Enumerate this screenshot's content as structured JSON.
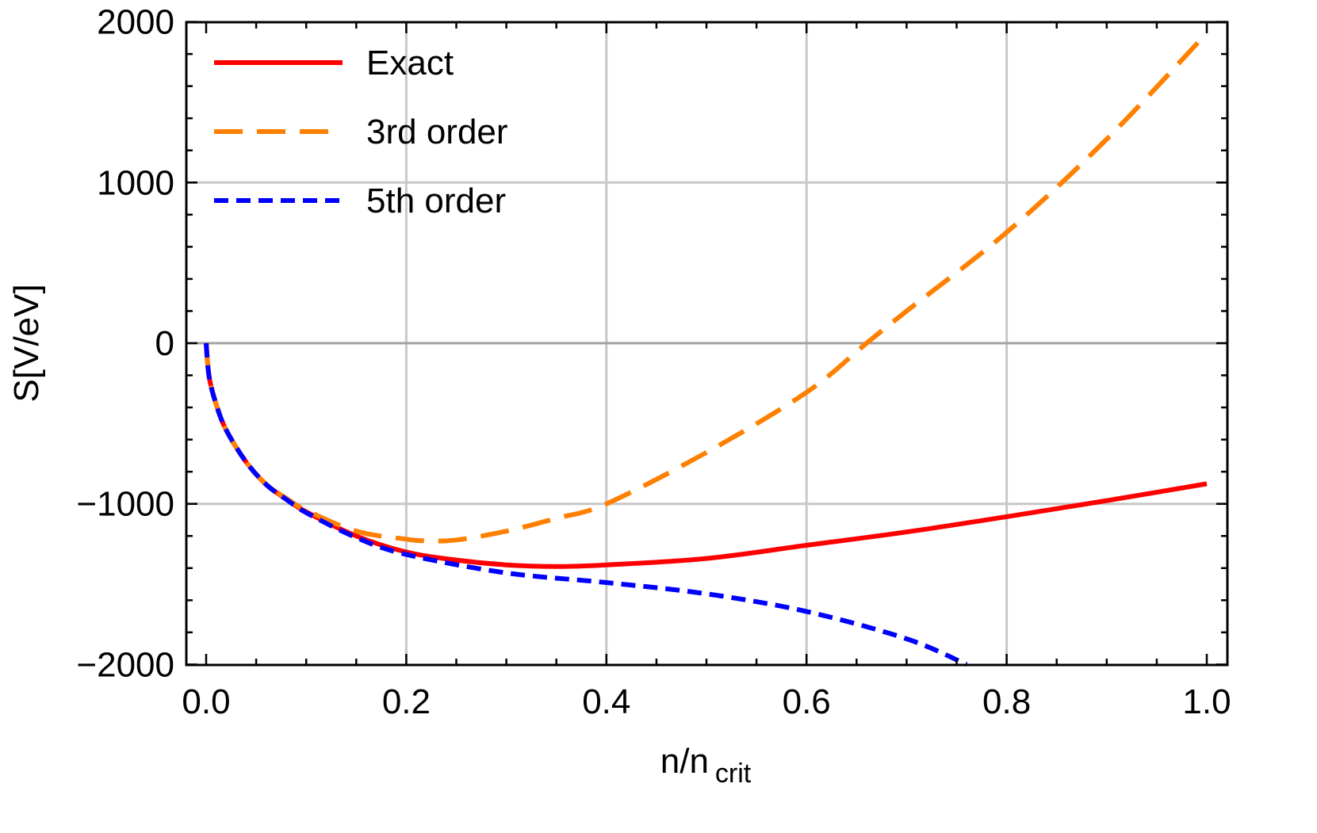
{
  "chart_data": {
    "type": "line",
    "title": "",
    "xlabel_main": "n/n",
    "xlabel_sub": "crit",
    "ylabel": "S[V/eV]",
    "xlim": [
      0,
      1
    ],
    "ylim": [
      -2000,
      2000
    ],
    "x_ticks": [
      0.0,
      0.2,
      0.4,
      0.6,
      0.8,
      1.0
    ],
    "x_tick_labels": [
      "0.0",
      "0.2",
      "0.4",
      "0.6",
      "0.8",
      "1.0"
    ],
    "y_ticks": [
      -2000,
      -1000,
      0,
      1000,
      2000
    ],
    "y_tick_labels": [
      "−2000",
      "−1000",
      "0",
      "1000",
      "2000"
    ],
    "grid": true,
    "legend_position": "top-left",
    "series": [
      {
        "name": "Exact",
        "color": "#ff0000",
        "style": "solid",
        "x": [
          0,
          0.003,
          0.01,
          0.02,
          0.04,
          0.06,
          0.08,
          0.1,
          0.15,
          0.2,
          0.25,
          0.3,
          0.35,
          0.4,
          0.5,
          0.6,
          0.7,
          0.8,
          0.9,
          1.0
        ],
        "y": [
          0,
          -210,
          -380,
          -540,
          -740,
          -880,
          -970,
          -1050,
          -1200,
          -1300,
          -1350,
          -1380,
          -1390,
          -1380,
          -1340,
          -1258,
          -1175,
          -1080,
          -980,
          -875
        ]
      },
      {
        "name": "3rd order",
        "color": "#ff8000",
        "style": "long-dash",
        "x": [
          0,
          0.003,
          0.01,
          0.02,
          0.04,
          0.06,
          0.08,
          0.1,
          0.15,
          0.2,
          0.22,
          0.25,
          0.3,
          0.35,
          0.4,
          0.5,
          0.6,
          0.66,
          0.7,
          0.8,
          0.9,
          1.0
        ],
        "y": [
          0,
          -210,
          -380,
          -540,
          -740,
          -878,
          -965,
          -1040,
          -1170,
          -1220,
          -1230,
          -1225,
          -1170,
          -1090,
          -1000,
          -680,
          -306,
          0,
          200,
          690,
          1270,
          1930
        ]
      },
      {
        "name": "5th order",
        "color": "#0000ff",
        "style": "short-dash",
        "x": [
          0,
          0.003,
          0.01,
          0.02,
          0.04,
          0.06,
          0.08,
          0.1,
          0.15,
          0.2,
          0.3,
          0.4,
          0.5,
          0.6,
          0.7,
          0.76
        ],
        "y": [
          0,
          -210,
          -380,
          -540,
          -740,
          -880,
          -972,
          -1055,
          -1210,
          -1315,
          -1430,
          -1490,
          -1560,
          -1670,
          -1840,
          -2000
        ]
      }
    ]
  }
}
